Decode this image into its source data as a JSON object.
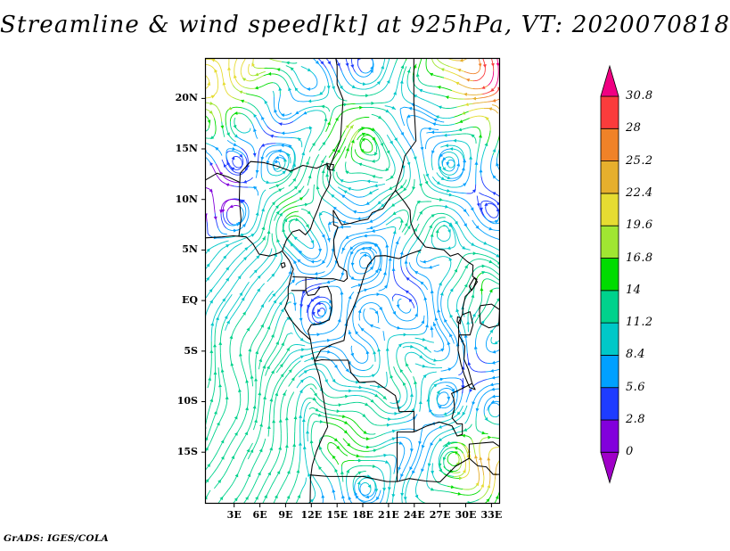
{
  "title": "Streamline & wind speed[kt] at 925hPa, VT: 2020070818",
  "footer": "GrADS: IGES/COLA",
  "chart_data": {
    "type": "streamline",
    "title": "Streamline & wind speed[kt] at 925hPa, VT: 2020070818",
    "variable": "wind speed",
    "units": "kt",
    "level": "925hPa",
    "valid_time": "2020070818",
    "region": "Central Africa",
    "lon_range": [
      -0.4,
      34.0
    ],
    "lat_range": [
      -20.1,
      24.0
    ],
    "grid": false,
    "legend_position": "right-colorbar",
    "lat_ticks": [
      {
        "label": "20N",
        "value": 20
      },
      {
        "label": "15N",
        "value": 15
      },
      {
        "label": "10N",
        "value": 10
      },
      {
        "label": "5N",
        "value": 5
      },
      {
        "label": "EQ",
        "value": 0
      },
      {
        "label": "5S",
        "value": -5
      },
      {
        "label": "10S",
        "value": -10
      },
      {
        "label": "15S",
        "value": -15
      }
    ],
    "lon_ticks": [
      {
        "label": "3E",
        "value": 3
      },
      {
        "label": "6E",
        "value": 6
      },
      {
        "label": "9E",
        "value": 9
      },
      {
        "label": "12E",
        "value": 12
      },
      {
        "label": "15E",
        "value": 15
      },
      {
        "label": "18E",
        "value": 18
      },
      {
        "label": "21E",
        "value": 21
      },
      {
        "label": "24E",
        "value": 24
      },
      {
        "label": "27E",
        "value": 27
      },
      {
        "label": "30E",
        "value": 30
      },
      {
        "label": "33E",
        "value": 33
      }
    ],
    "colorbar": {
      "levels": [
        0,
        2.8,
        5.6,
        8.4,
        11.2,
        14,
        16.8,
        19.6,
        22.4,
        25.2,
        28,
        30.8
      ],
      "colors": [
        "#a000c8",
        "#8200dc",
        "#1e3cff",
        "#00a0ff",
        "#00c8c8",
        "#00d28c",
        "#00dc00",
        "#a0e632",
        "#e6dc32",
        "#e6af2d",
        "#f08228",
        "#fa3c3c",
        "#f00082"
      ]
    }
  }
}
